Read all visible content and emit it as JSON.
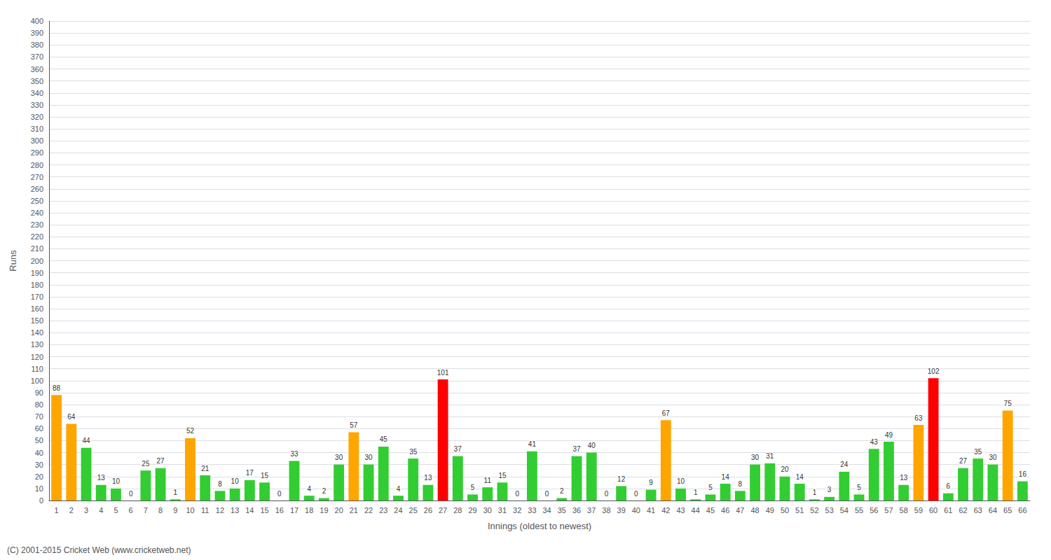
{
  "chart_data": {
    "type": "bar",
    "xlabel": "Innings (oldest to newest)",
    "ylabel": "Runs",
    "categories": [
      "1",
      "2",
      "3",
      "4",
      "5",
      "6",
      "7",
      "8",
      "9",
      "10",
      "11",
      "12",
      "13",
      "14",
      "15",
      "16",
      "17",
      "18",
      "19",
      "20",
      "21",
      "22",
      "23",
      "24",
      "25",
      "26",
      "27",
      "28",
      "29",
      "30",
      "31",
      "32",
      "33",
      "34",
      "35",
      "36",
      "37",
      "38",
      "39",
      "40",
      "41",
      "42",
      "43",
      "44",
      "45",
      "46",
      "47",
      "48",
      "49",
      "50",
      "51",
      "52",
      "53",
      "54",
      "55",
      "56",
      "57",
      "58",
      "59",
      "60",
      "61",
      "62",
      "63",
      "64",
      "65",
      "66"
    ],
    "values": [
      88,
      64,
      44,
      13,
      10,
      0,
      25,
      27,
      1,
      52,
      21,
      8,
      10,
      17,
      15,
      0,
      33,
      4,
      2,
      30,
      57,
      30,
      45,
      4,
      35,
      13,
      101,
      37,
      5,
      11,
      15,
      0,
      41,
      0,
      2,
      37,
      40,
      0,
      12,
      0,
      9,
      67,
      10,
      1,
      5,
      14,
      8,
      30,
      31,
      20,
      14,
      1,
      3,
      24,
      5,
      43,
      49,
      13,
      63,
      102,
      6,
      27,
      35,
      30,
      75,
      16
    ],
    "colors": [
      "orange",
      "orange",
      "limegreen",
      "limegreen",
      "limegreen",
      "limegreen",
      "limegreen",
      "limegreen",
      "limegreen",
      "orange",
      "limegreen",
      "limegreen",
      "limegreen",
      "limegreen",
      "limegreen",
      "limegreen",
      "limegreen",
      "limegreen",
      "limegreen",
      "limegreen",
      "orange",
      "limegreen",
      "limegreen",
      "limegreen",
      "limegreen",
      "limegreen",
      "red",
      "limegreen",
      "limegreen",
      "limegreen",
      "limegreen",
      "limegreen",
      "limegreen",
      "limegreen",
      "limegreen",
      "limegreen",
      "limegreen",
      "limegreen",
      "limegreen",
      "limegreen",
      "limegreen",
      "orange",
      "limegreen",
      "limegreen",
      "limegreen",
      "limegreen",
      "limegreen",
      "limegreen",
      "limegreen",
      "limegreen",
      "limegreen",
      "limegreen",
      "limegreen",
      "limegreen",
      "limegreen",
      "limegreen",
      "limegreen",
      "limegreen",
      "orange",
      "red",
      "limegreen",
      "limegreen",
      "limegreen",
      "limegreen",
      "orange",
      "limegreen"
    ],
    "ylim": [
      0,
      400
    ],
    "yticks": [
      0,
      10,
      20,
      30,
      40,
      50,
      60,
      70,
      80,
      90,
      100,
      110,
      120,
      130,
      140,
      150,
      160,
      170,
      180,
      190,
      200,
      210,
      220,
      230,
      240,
      250,
      260,
      270,
      280,
      290,
      300,
      310,
      320,
      330,
      340,
      350,
      360,
      370,
      380,
      390,
      400
    ],
    "grid": true,
    "data_labels": true,
    "annotations": [
      "(C) 2001-2015 Cricket Web (www.cricketweb.net)"
    ]
  }
}
